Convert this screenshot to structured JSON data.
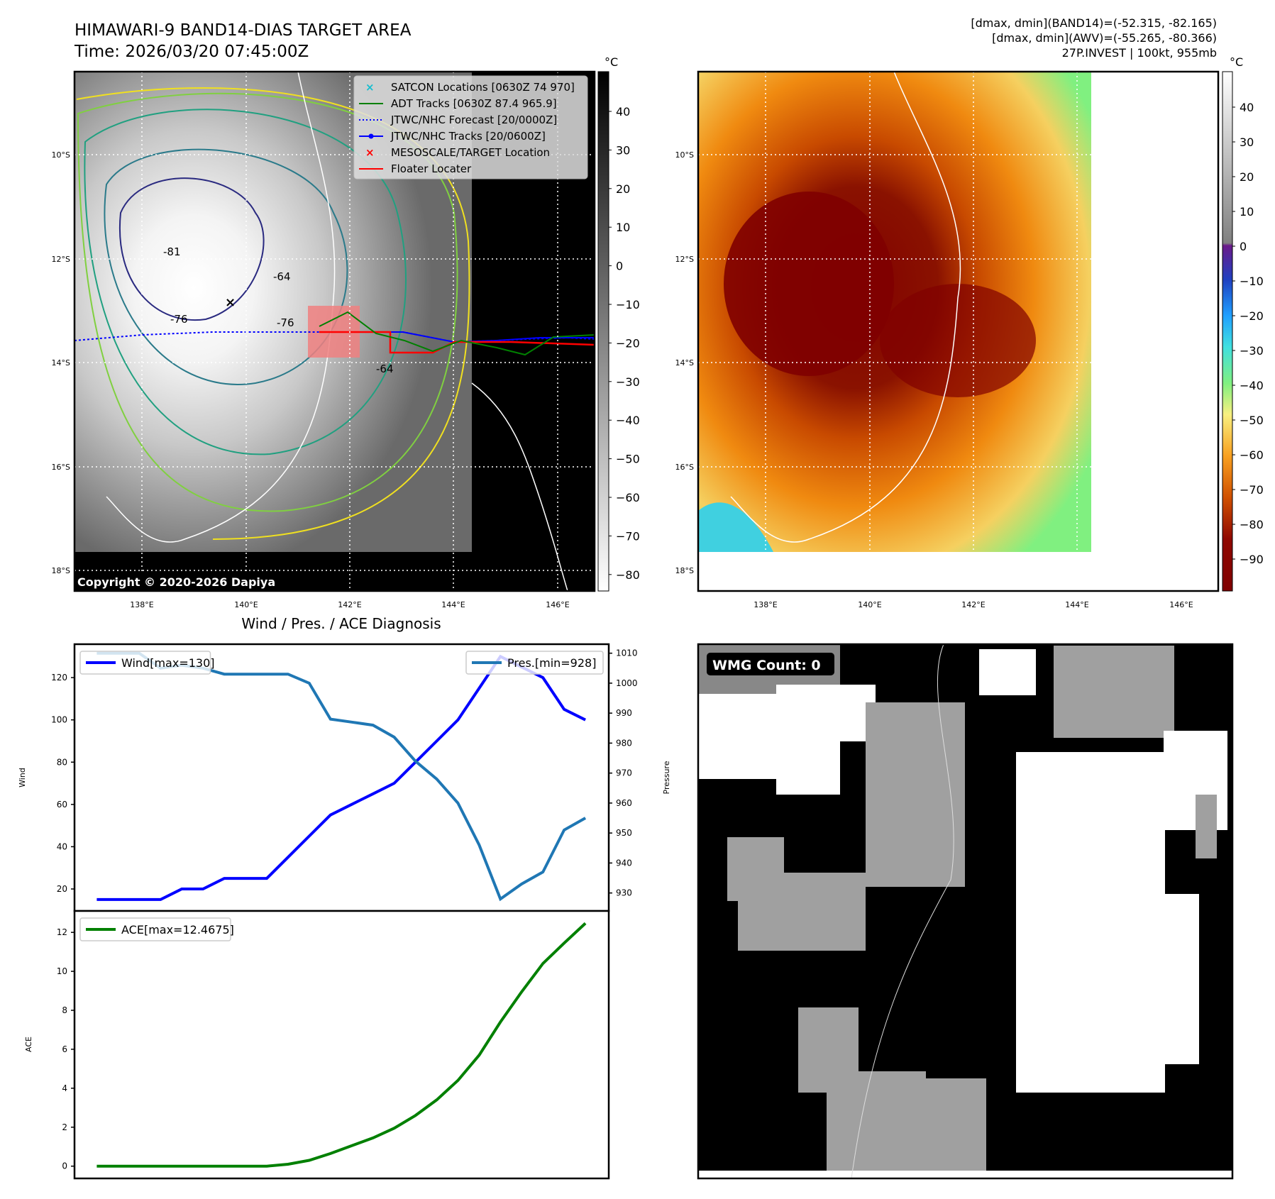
{
  "header": {
    "title": "HIMAWARI-9 BAND14-DIAS TARGET AREA",
    "time": "Time: 2026/03/20 07:45:00Z",
    "stats_line1": "[dmax, dmin](BAND14)=(-52.315, -82.165)",
    "stats_line2": "[dmax, dmin](AWV)=(-55.265, -80.366)",
    "stats_line3": "27P.INVEST | 100kt, 955mb"
  },
  "map": {
    "lat_labels": [
      "10°S",
      "12°S",
      "14°S",
      "16°S",
      "18°S"
    ],
    "lon_labels": [
      "138°E",
      "140°E",
      "142°E",
      "144°E",
      "146°E"
    ],
    "copyright": "Copyright © 2020-2026 Dapiya",
    "contour_labels": [
      "-81",
      "-76",
      "-64",
      "-76",
      "-64"
    ],
    "legend": [
      {
        "label": "SATCON Locations [0630Z 74 970]",
        "color": "#17becf",
        "marker": "x"
      },
      {
        "label": "ADT Tracks [0630Z 87.4 965.9]",
        "color": "#008000",
        "marker": "line"
      },
      {
        "label": "JTWC/NHC Forecast [20/0000Z]",
        "color": "#0000ff",
        "marker": "dotted"
      },
      {
        "label": "JTWC/NHC Tracks [20/0600Z]",
        "color": "#0000ff",
        "marker": "line-dot"
      },
      {
        "label": "MESOSCALE/TARGET Location",
        "color": "#ff0000",
        "marker": "x"
      },
      {
        "label": "Floater Locater",
        "color": "#ff0000",
        "marker": "line"
      }
    ]
  },
  "colorbar_left": {
    "unit": "°C",
    "ticks": [
      "40",
      "30",
      "20",
      "10",
      "0",
      "−10",
      "−20",
      "−30",
      "−40",
      "−50",
      "−60",
      "−70",
      "−80"
    ]
  },
  "colorbar_right": {
    "unit": "°C",
    "ticks": [
      "40",
      "30",
      "20",
      "10",
      "0",
      "−10",
      "−20",
      "−30",
      "−40",
      "−50",
      "−60",
      "−70",
      "−80",
      "−90"
    ]
  },
  "wmg": {
    "label": "WMG Count: 0"
  },
  "chart_data": [
    {
      "type": "line",
      "title": "Wind / Pres. / ACE Diagnosis",
      "x": [
        0,
        1,
        2,
        3,
        4,
        5,
        6,
        7,
        8,
        9,
        10,
        11,
        12,
        13,
        14,
        15,
        16,
        17,
        18,
        19,
        20,
        21,
        22,
        23
      ],
      "xlim": [
        -1.05,
        24.1
      ],
      "ylabel": "Wind",
      "ylabel_right": "Pressure",
      "ylim": [
        9.6,
        135.8
      ],
      "ylim_right": [
        924,
        1013
      ],
      "yticks": [
        20,
        40,
        60,
        80,
        100,
        120
      ],
      "yticks_right": [
        930,
        940,
        950,
        960,
        970,
        980,
        990,
        1000,
        1010
      ],
      "series": [
        {
          "name": "Wind[max=130]",
          "axis": "left",
          "color": "#0000ff",
          "values": [
            15,
            15,
            15,
            15,
            20,
            20,
            25,
            25,
            25,
            35,
            45,
            55,
            60,
            65,
            70,
            80,
            90,
            100,
            115,
            130,
            125,
            120,
            105,
            100
          ]
        },
        {
          "name": "Pres.[min=928]",
          "axis": "right",
          "color": "#1f77b4",
          "values": [
            1010,
            1010,
            1010,
            1005,
            1006,
            1005,
            1003,
            1003,
            1003,
            1003,
            1000,
            988,
            987,
            986,
            982,
            974,
            968,
            960,
            946,
            928,
            933,
            937,
            951,
            955
          ]
        }
      ],
      "legend": [
        "top-left",
        "top-right"
      ]
    },
    {
      "type": "line",
      "title": "",
      "x": [
        0,
        1,
        2,
        3,
        4,
        5,
        6,
        7,
        8,
        9,
        10,
        11,
        12,
        13,
        14,
        15,
        16,
        17,
        18,
        19,
        20,
        21,
        22,
        23
      ],
      "xlim": [
        -1.05,
        24.1
      ],
      "ylabel": "ACE",
      "ylim": [
        -0.63,
        13.1
      ],
      "yticks": [
        0,
        2,
        4,
        6,
        8,
        10,
        12
      ],
      "series": [
        {
          "name": "ACE[max=12.4675]",
          "color": "#008000",
          "values": [
            0,
            0,
            0,
            0,
            0,
            0,
            0,
            0,
            0,
            0.1,
            0.3,
            0.65,
            1.05,
            1.45,
            1.95,
            2.6,
            3.4,
            4.4,
            5.7,
            7.4,
            8.95,
            10.4,
            11.45,
            12.4675
          ]
        }
      ],
      "legend": [
        "top-left"
      ]
    }
  ]
}
